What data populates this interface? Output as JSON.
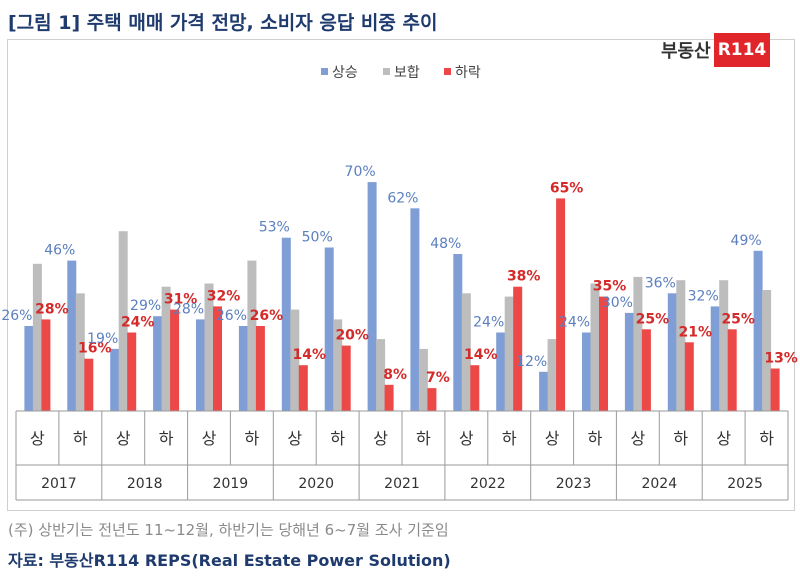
{
  "title": "[그림 1] 주택 매매 가격 전망, 소비자 응답 비중 추이",
  "logo": {
    "text": "부동산",
    "badge": "R114"
  },
  "note": "(주) 상반기는 전년도 11~12월, 하반기는 당해년 6~7월 조사 기준임",
  "source": "자료: 부동산R114 REPS(Real Estate Power Solution)",
  "chart_data": {
    "type": "bar",
    "years": [
      "2017",
      "2018",
      "2019",
      "2020",
      "2021",
      "2022",
      "2023",
      "2024",
      "2025"
    ],
    "halves": [
      "상",
      "하"
    ],
    "categories": [
      "2017 상",
      "2017 하",
      "2018 상",
      "2018 하",
      "2019 상",
      "2019 하",
      "2020 상",
      "2020 하",
      "2021 상",
      "2021 하",
      "2022 상",
      "2022 하",
      "2023 상",
      "2023 하",
      "2024 상",
      "2024 하",
      "2025 상",
      "2025 하"
    ],
    "series": [
      {
        "name": "상승",
        "color": "#7f9ed6",
        "label_color": "#5b7fbf",
        "values": [
          26,
          46,
          19,
          29,
          28,
          26,
          53,
          50,
          70,
          62,
          48,
          24,
          12,
          24,
          30,
          36,
          32,
          49
        ],
        "labels": [
          "26%",
          "46%",
          "19%",
          "29%",
          "28%",
          "26%",
          "53%",
          "50%",
          "70%",
          "62%",
          "48%",
          "24%",
          "12%",
          "24%",
          "30%",
          "36%",
          "32%",
          "49%"
        ]
      },
      {
        "name": "보합",
        "color": "#bdbdbd",
        "label_color": "#8a8a8a",
        "values": [
          45,
          36,
          55,
          38,
          39,
          46,
          31,
          28,
          22,
          19,
          36,
          35,
          22,
          39,
          41,
          40,
          40,
          37
        ],
        "labels": []
      },
      {
        "name": "하락",
        "color": "#ec4848",
        "label_color": "#d42a2a",
        "values": [
          28,
          16,
          24,
          31,
          32,
          26,
          14,
          20,
          8,
          7,
          14,
          38,
          65,
          35,
          25,
          21,
          25,
          13
        ],
        "labels": [
          "28%",
          "16%",
          "24%",
          "31%",
          "32%",
          "26%",
          "14%",
          "20%",
          "8%",
          "7%",
          "14%",
          "38%",
          "65%",
          "35%",
          "25%",
          "21%",
          "25%",
          "13%"
        ]
      }
    ],
    "ylim": [
      0,
      75
    ],
    "grid": false,
    "legend": "top-center",
    "data_labels": "상승, 하락 only"
  }
}
